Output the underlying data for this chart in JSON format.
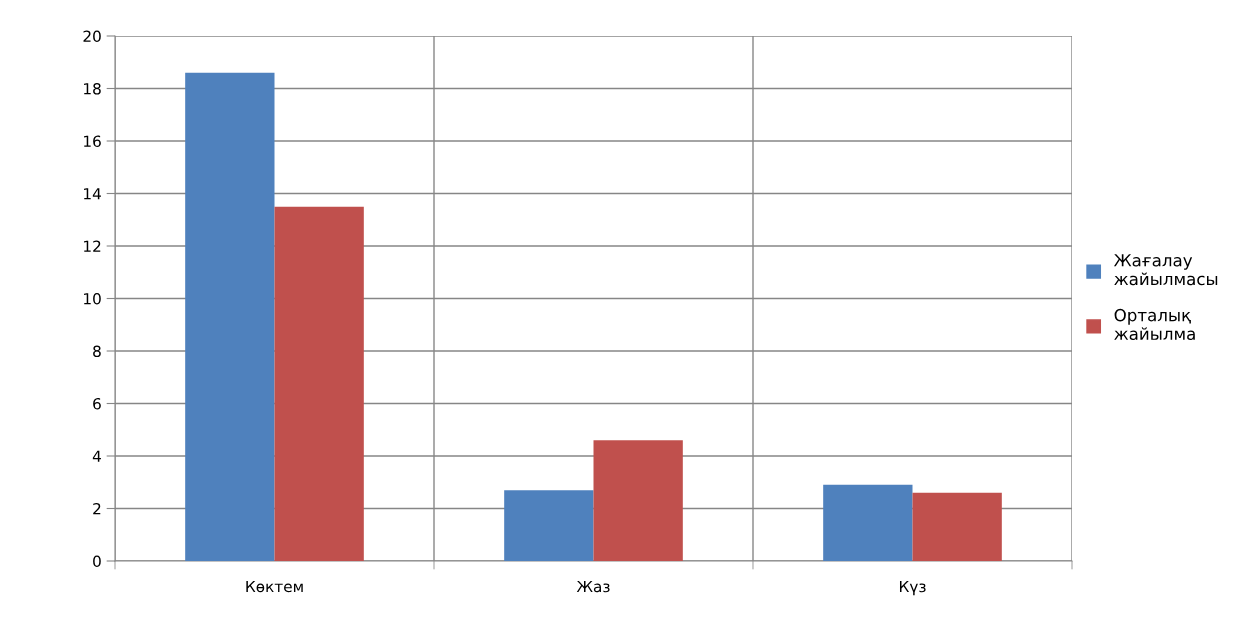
{
  "chart_data": {
    "type": "bar",
    "categories": [
      "Көктем",
      "Жаз",
      "Күз"
    ],
    "series": [
      {
        "name": "Жағалау жайылмасы",
        "color": "#4f81bd",
        "values": [
          18.6,
          2.7,
          2.9
        ]
      },
      {
        "name": "Орталық жайылма",
        "color": "#c0504d",
        "values": [
          13.5,
          4.6,
          2.6
        ]
      }
    ],
    "ylim": [
      0,
      20
    ],
    "yticks": [
      0,
      2,
      4,
      6,
      8,
      10,
      12,
      14,
      16,
      18,
      20
    ],
    "grid": true,
    "legend": "right"
  }
}
